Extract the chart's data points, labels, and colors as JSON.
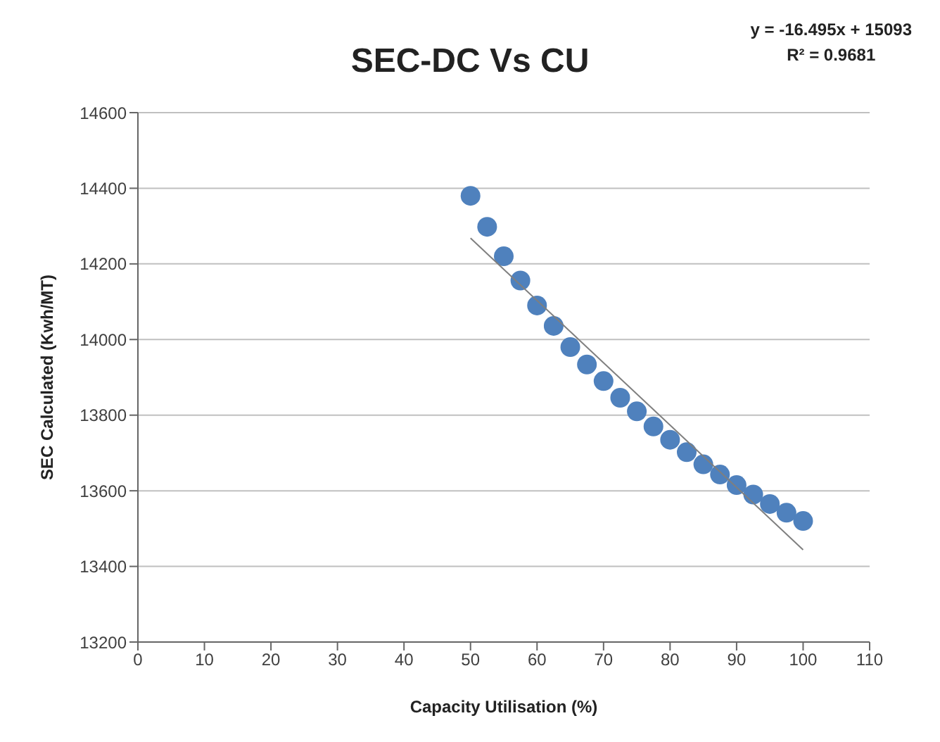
{
  "chart_data": {
    "type": "scatter",
    "title": "SEC-DC Vs CU",
    "xlabel": "Capacity Utilisation (%)",
    "ylabel": "SEC Calculated (Kwh/MT)",
    "annotations": [
      "y = -16.495x + 15093",
      "R² = 0.9681"
    ],
    "xlim": [
      0,
      110
    ],
    "xticks": [
      0,
      10,
      20,
      30,
      40,
      50,
      60,
      70,
      80,
      90,
      100,
      110
    ],
    "ylim": [
      13200,
      14600
    ],
    "yticks": [
      13200,
      13400,
      13600,
      13800,
      14000,
      14200,
      14400,
      14600
    ],
    "grid": "y",
    "series": [
      {
        "marker": "circle",
        "color": "#4f81bd",
        "x": [
          50,
          52.5,
          55,
          57.5,
          60,
          62.5,
          65,
          67.5,
          70,
          72.5,
          75,
          77.5,
          80,
          82.5,
          85,
          87.5,
          90,
          92.5,
          95,
          97.5,
          100
        ],
        "values": [
          14380,
          14298,
          14220,
          14156,
          14090,
          14036,
          13980,
          13934,
          13890,
          13846,
          13810,
          13770,
          13735,
          13702,
          13670,
          13643,
          13615,
          13590,
          13565,
          13542,
          13520
        ]
      },
      {
        "type": "line",
        "color": "#7f7f7f",
        "x": [
          50,
          100
        ],
        "values": [
          14268,
          13444
        ]
      }
    ]
  }
}
